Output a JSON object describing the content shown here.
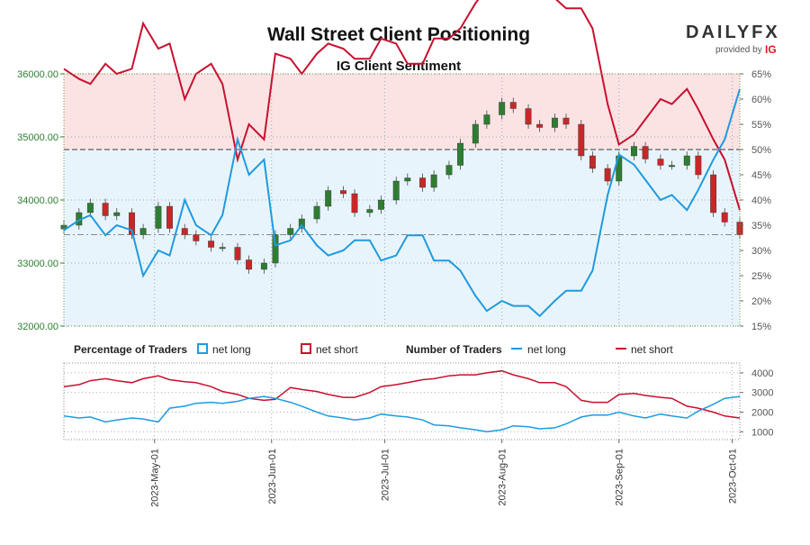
{
  "header": {
    "title": "Wall Street Client Positioning",
    "subtitle": "IG Client Sentiment"
  },
  "logo": {
    "brand": "DAILYFX",
    "provided_by": "provided by",
    "partner": "IG"
  },
  "colors": {
    "net_long": "#1e9be0",
    "net_short": "#c8102e",
    "candle_up": "#2e7d32",
    "candle_down": "#c62828",
    "bg_long": "#e8f4fb",
    "bg_short": "#fbe3e4"
  },
  "chart_data": [
    {
      "type": "line",
      "panel": "price_and_percentage",
      "title": "IG Client Sentiment",
      "x": [
        "2023-04-07",
        "2023-04-11",
        "2023-04-14",
        "2023-04-18",
        "2023-04-21",
        "2023-04-25",
        "2023-04-28",
        "2023-05-02",
        "2023-05-05",
        "2023-05-09",
        "2023-05-12",
        "2023-05-16",
        "2023-05-19",
        "2023-05-23",
        "2023-05-26",
        "2023-05-30",
        "2023-06-02",
        "2023-06-06",
        "2023-06-09",
        "2023-06-13",
        "2023-06-16",
        "2023-06-20",
        "2023-06-23",
        "2023-06-27",
        "2023-06-30",
        "2023-07-04",
        "2023-07-07",
        "2023-07-11",
        "2023-07-14",
        "2023-07-18",
        "2023-07-21",
        "2023-07-25",
        "2023-07-28",
        "2023-08-01",
        "2023-08-04",
        "2023-08-08",
        "2023-08-11",
        "2023-08-15",
        "2023-08-18",
        "2023-08-22",
        "2023-08-25",
        "2023-08-29",
        "2023-09-01",
        "2023-09-05",
        "2023-09-08",
        "2023-09-12",
        "2023-09-15",
        "2023-09-19",
        "2023-09-22",
        "2023-09-26",
        "2023-09-29",
        "2023-10-03"
      ],
      "price_close": [
        33600,
        33800,
        33950,
        33750,
        33800,
        33450,
        33550,
        33900,
        33550,
        33450,
        33350,
        33250,
        33250,
        33050,
        32900,
        33000,
        33450,
        33550,
        33700,
        33900,
        34150,
        34100,
        33800,
        33850,
        34000,
        34300,
        34350,
        34200,
        34400,
        34550,
        34900,
        35200,
        35350,
        35550,
        35450,
        35200,
        35150,
        35300,
        35200,
        34700,
        34500,
        34300,
        34700,
        34850,
        34650,
        34550,
        34550,
        34700,
        34400,
        33800,
        33650,
        33450
      ],
      "net_long_pct": [
        34,
        36,
        37,
        33,
        35,
        34,
        25,
        30,
        29,
        40,
        35,
        33,
        37,
        52,
        45,
        48,
        31,
        32,
        35,
        31,
        29,
        30,
        32,
        32,
        28,
        29,
        33,
        33,
        28,
        28,
        26,
        21,
        18,
        20,
        19,
        19,
        17,
        20,
        22,
        22,
        26,
        41,
        49,
        47,
        44,
        40,
        41,
        38,
        42,
        48,
        52,
        62
      ],
      "net_short_pct": [
        66,
        64,
        63,
        67,
        65,
        66,
        75,
        70,
        71,
        60,
        65,
        67,
        63,
        48,
        55,
        52,
        69,
        68,
        65,
        69,
        71,
        70,
        68,
        68,
        72,
        71,
        67,
        67,
        72,
        72,
        74,
        79,
        82,
        80,
        81,
        81,
        83,
        80,
        78,
        78,
        74,
        59,
        51,
        53,
        56,
        60,
        59,
        62,
        58,
        52,
        48,
        38
      ],
      "y_left_range": [
        32000,
        36000
      ],
      "y_left_ticks": [
        "36000.00",
        "35000.00",
        "34000.00",
        "33000.00",
        "32000.00"
      ],
      "y_right_range": [
        15,
        65
      ],
      "y_right_ticks": [
        "65%",
        "60%",
        "55%",
        "50%",
        "45%",
        "40%",
        "35%",
        "30%",
        "25%",
        "20%",
        "15%"
      ],
      "reference_pct": 50,
      "grid": true
    },
    {
      "type": "line",
      "panel": "number_of_traders",
      "title": "Number of Traders",
      "x": [
        "2023-04-07",
        "2023-04-11",
        "2023-04-14",
        "2023-04-18",
        "2023-04-21",
        "2023-04-25",
        "2023-04-28",
        "2023-05-02",
        "2023-05-05",
        "2023-05-09",
        "2023-05-12",
        "2023-05-16",
        "2023-05-19",
        "2023-05-23",
        "2023-05-26",
        "2023-05-30",
        "2023-06-02",
        "2023-06-06",
        "2023-06-09",
        "2023-06-13",
        "2023-06-16",
        "2023-06-20",
        "2023-06-23",
        "2023-06-27",
        "2023-06-30",
        "2023-07-04",
        "2023-07-07",
        "2023-07-11",
        "2023-07-14",
        "2023-07-18",
        "2023-07-21",
        "2023-07-25",
        "2023-07-28",
        "2023-08-01",
        "2023-08-04",
        "2023-08-08",
        "2023-08-11",
        "2023-08-15",
        "2023-08-18",
        "2023-08-22",
        "2023-08-25",
        "2023-08-29",
        "2023-09-01",
        "2023-09-05",
        "2023-09-08",
        "2023-09-12",
        "2023-09-15",
        "2023-09-19",
        "2023-09-22",
        "2023-09-26",
        "2023-09-29",
        "2023-10-03"
      ],
      "series": [
        {
          "name": "net long",
          "values": [
            1800,
            1700,
            1750,
            1500,
            1600,
            1700,
            1650,
            1500,
            2200,
            2300,
            2450,
            2500,
            2450,
            2550,
            2700,
            2800,
            2700,
            2500,
            2300,
            2000,
            1800,
            1700,
            1600,
            1700,
            1900,
            1800,
            1750,
            1600,
            1350,
            1300,
            1200,
            1100,
            1000,
            1100,
            1300,
            1250,
            1150,
            1200,
            1400,
            1750,
            1850,
            1850,
            2000,
            1800,
            1700,
            1900,
            1800,
            1700,
            2050,
            2400,
            2700,
            2800
          ]
        },
        {
          "name": "net short",
          "values": [
            3300,
            3400,
            3600,
            3700,
            3600,
            3500,
            3700,
            3850,
            3650,
            3550,
            3500,
            3300,
            3050,
            2900,
            2700,
            2600,
            2650,
            3250,
            3150,
            3050,
            2900,
            2750,
            2750,
            3000,
            3300,
            3400,
            3500,
            3650,
            3700,
            3850,
            3900,
            3900,
            4000,
            4100,
            3900,
            3700,
            3500,
            3500,
            3300,
            2600,
            2500,
            2500,
            2900,
            2950,
            2850,
            2750,
            2700,
            2300,
            2200,
            2000,
            1800,
            1700
          ]
        }
      ],
      "y_range": [
        600,
        4500
      ],
      "y_ticks": [
        "4000",
        "3000",
        "2000",
        "1000"
      ],
      "grid": true
    }
  ],
  "x_axis": {
    "tick_labels": [
      "2023-May-01",
      "2023-Jun-01",
      "2023-Jul-01",
      "2023-Aug-01",
      "2023-Sep-01",
      "2023-Oct-01"
    ],
    "tick_dates": [
      "2023-05-01",
      "2023-06-01",
      "2023-07-01",
      "2023-08-01",
      "2023-09-01",
      "2023-10-01"
    ]
  },
  "legend": {
    "pct_title": "Percentage of Traders",
    "pct_long": "net long",
    "pct_short": "net short",
    "num_title": "Number of Traders",
    "num_long": "net long",
    "num_short": "net short"
  }
}
